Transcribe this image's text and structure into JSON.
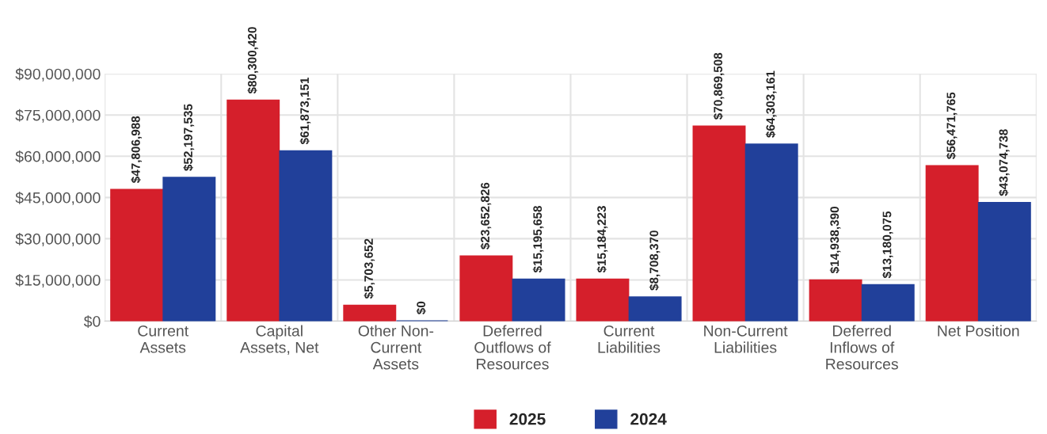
{
  "chart_data": {
    "type": "bar",
    "categories": [
      "Current\nAssets",
      "Capital\nAssets, Net",
      "Other Non-\nCurrent\nAssets",
      "Deferred\nOutflows of\nResources",
      "Current\nLiabilities",
      "Non-Current\nLiabilities",
      "Deferred\nInflows of\nResources",
      "Net Position"
    ],
    "series": [
      {
        "name": "2025",
        "color": "#d51f2b",
        "values": [
          47806988,
          80300420,
          5703652,
          23652826,
          15184223,
          70869508,
          14938390,
          56471765
        ],
        "value_labels": [
          "$47,806,988",
          "$80,300,420",
          "$5,703,652",
          "$23,652,826",
          "$15,184,223",
          "$70,869,508",
          "$14,938,390",
          "$56,471,765"
        ]
      },
      {
        "name": "2024",
        "color": "#21409a",
        "values": [
          52197535,
          61873151,
          0,
          15195658,
          8708370,
          64303161,
          13180075,
          43074738
        ],
        "value_labels": [
          "$52,197,535",
          "$61,873,151",
          "$0",
          "$15,195,658",
          "$8,708,370",
          "$64,303,161",
          "$13,180,075",
          "$43,074,738"
        ]
      }
    ],
    "ylim": [
      0,
      90000000
    ],
    "yticks": [
      {
        "value": 0,
        "label": "$0"
      },
      {
        "value": 15000000,
        "label": "$15,000,000"
      },
      {
        "value": 30000000,
        "label": "$30,000,000"
      },
      {
        "value": 45000000,
        "label": "$45,000,000"
      },
      {
        "value": 60000000,
        "label": "$60,000,000"
      },
      {
        "value": 75000000,
        "label": "$75,000,000"
      },
      {
        "value": 90000000,
        "label": "$90,000,000"
      }
    ],
    "grid": true,
    "legend": "bottom"
  }
}
